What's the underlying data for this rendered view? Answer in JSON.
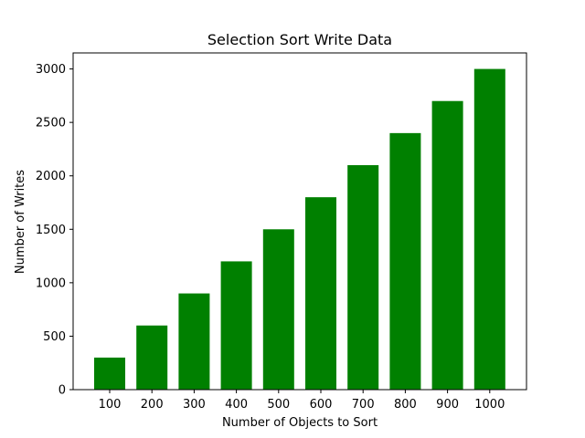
{
  "chart_data": {
    "type": "bar",
    "title": "Selection Sort Write Data",
    "xlabel": "Number of Objects to Sort",
    "ylabel": "Number of Writes",
    "categories": [
      "100",
      "200",
      "300",
      "400",
      "500",
      "600",
      "700",
      "800",
      "900",
      "1000"
    ],
    "values": [
      300,
      600,
      900,
      1200,
      1500,
      1800,
      2100,
      2400,
      2700,
      3000
    ],
    "yticks": [
      0,
      500,
      1000,
      1500,
      2000,
      2500,
      3000
    ],
    "ylim": [
      0,
      3150
    ],
    "grid": false,
    "legend": "none",
    "bar_color": "#008000"
  }
}
